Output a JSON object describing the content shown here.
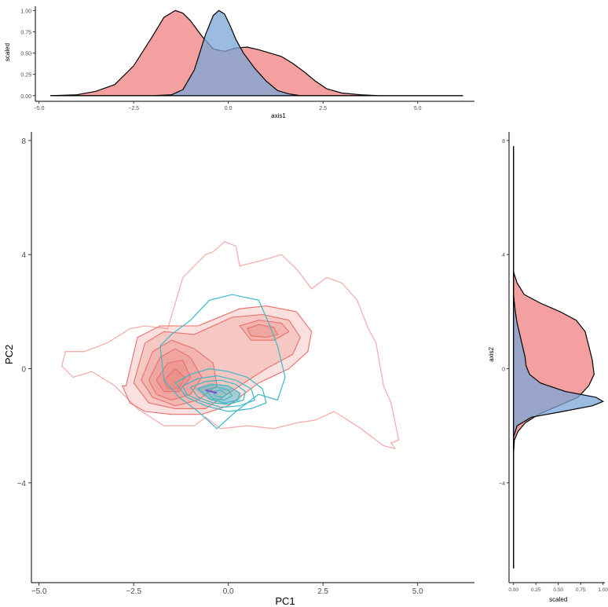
{
  "chart_data": [
    {
      "panel": "top-marginal",
      "type": "area",
      "xlabel": "axis1",
      "ylabel": "scaled",
      "xlim": [
        -5.2,
        6.5
      ],
      "ylim": [
        -0.03,
        1.05
      ],
      "xticks": [
        -5,
        -2.5,
        0,
        2.5,
        5
      ],
      "xtick_labels": [
        "−5.0",
        "−2.5",
        "0.0",
        "2.5",
        "5.0"
      ],
      "yticks": [
        0,
        0.25,
        0.5,
        0.75,
        1
      ],
      "ytick_labels": [
        "0.00",
        "0.25",
        "0.50",
        "0.75",
        "1.00"
      ],
      "series": [
        {
          "color": "#f08080",
          "x": [
            -4.7,
            -4.0,
            -3.5,
            -3.0,
            -2.5,
            -2.0,
            -1.7,
            -1.4,
            -1.2,
            -1.0,
            -0.7,
            -0.4,
            -0.1,
            0.2,
            0.5,
            0.8,
            1.1,
            1.4,
            1.7,
            2.0,
            2.3,
            2.6,
            3.0,
            3.5,
            4.0,
            5.0,
            6.2
          ],
          "values": [
            0,
            0.01,
            0.05,
            0.13,
            0.35,
            0.7,
            0.92,
            1.0,
            0.97,
            0.88,
            0.7,
            0.55,
            0.52,
            0.56,
            0.57,
            0.54,
            0.5,
            0.46,
            0.38,
            0.28,
            0.17,
            0.08,
            0.03,
            0.01,
            0.0,
            0,
            0
          ]
        },
        {
          "color": "#7aa6d6",
          "x": [
            -4.7,
            -2.0,
            -1.5,
            -1.2,
            -0.9,
            -0.6,
            -0.4,
            -0.25,
            -0.1,
            0.05,
            0.2,
            0.4,
            0.7,
            1.0,
            1.3,
            1.6,
            1.9,
            2.3,
            6.2
          ],
          "values": [
            0,
            0,
            0.01,
            0.07,
            0.3,
            0.72,
            0.94,
            1.0,
            0.96,
            0.82,
            0.66,
            0.5,
            0.32,
            0.17,
            0.06,
            0.02,
            0.0,
            0,
            0
          ]
        }
      ]
    },
    {
      "panel": "main",
      "type": "contour",
      "xlabel": "PC1",
      "ylabel": "PC2",
      "xlim": [
        -5.2,
        6.5
      ],
      "ylim": [
        -7.5,
        8.3
      ],
      "xticks": [
        -5,
        -2.5,
        0,
        2.5,
        5
      ],
      "xtick_labels": [
        "−5.0",
        "−2.5",
        "0.0",
        "2.5",
        "5.0"
      ],
      "yticks": [
        -4,
        0,
        4,
        8
      ],
      "ytick_labels": [
        "−4",
        "0",
        "4",
        "8"
      ],
      "groups": [
        {
          "color": "#e8706a",
          "filled_levels": [
            {
              "opacity": 0.22,
              "x": [
                -2.7,
                -2.4,
                -1.8,
                -0.8,
                0.3,
                1.0,
                1.8,
                2.2,
                2.1,
                1.6,
                0.8,
                0.0,
                -0.7,
                -1.5,
                -2.2,
                -2.6,
                -2.8
              ],
              "y": [
                -0.6,
                1.1,
                1.5,
                1.5,
                2.1,
                2.2,
                2.0,
                1.3,
                0.6,
                0.0,
                -0.5,
                -1.3,
                -1.6,
                -1.6,
                -1.5,
                -1.2,
                -0.6
              ]
            },
            {
              "opacity": 0.22,
              "x": [
                -2.5,
                -2.2,
                -1.7,
                -0.9,
                0.1,
                0.9,
                1.6,
                1.9,
                1.7,
                1.0,
                0.3,
                -0.6,
                -1.4,
                -2.1,
                -2.5
              ],
              "y": [
                -0.5,
                0.9,
                1.3,
                1.2,
                1.8,
                1.9,
                1.7,
                1.1,
                0.5,
                0.0,
                -0.6,
                -1.4,
                -1.4,
                -1.2,
                -0.5
              ]
            },
            {
              "opacity": 0.22,
              "x": [
                -2.3,
                -2.0,
                -1.5,
                -0.9,
                -0.4,
                -0.3,
                -0.8,
                -1.4,
                -2.0,
                -2.3
              ],
              "y": [
                -0.4,
                0.6,
                1.0,
                0.7,
                0.2,
                -0.6,
                -1.1,
                -1.3,
                -1.0,
                -0.4
              ]
            },
            {
              "opacity": 0.22,
              "x": [
                0.3,
                0.8,
                1.4,
                1.6,
                1.2,
                0.6,
                0.3
              ],
              "y": [
                1.5,
                1.7,
                1.6,
                1.3,
                1.0,
                1.0,
                1.5
              ]
            },
            {
              "opacity": 0.22,
              "x": [
                -2.1,
                -1.8,
                -1.4,
                -1.0,
                -0.7,
                -1.0,
                -1.5,
                -1.9,
                -2.1
              ],
              "y": [
                -0.4,
                0.4,
                0.7,
                0.4,
                -0.3,
                -0.9,
                -1.1,
                -0.9,
                -0.4
              ]
            },
            {
              "opacity": 0.22,
              "x": [
                0.5,
                0.8,
                1.2,
                1.3,
                1.0,
                0.6,
                0.5
              ],
              "y": [
                1.4,
                1.55,
                1.45,
                1.2,
                1.1,
                1.15,
                1.4
              ]
            },
            {
              "opacity": 0.22,
              "x": [
                -1.9,
                -1.6,
                -1.2,
                -1.0,
                -1.3,
                -1.7,
                -1.9
              ],
              "y": [
                -0.4,
                0.2,
                0.3,
                -0.3,
                -0.8,
                -0.8,
                -0.4
              ]
            },
            {
              "opacity": 0.22,
              "x": [
                -1.7,
                -1.4,
                -1.15,
                -1.3,
                -1.6,
                -1.7
              ],
              "y": [
                -0.4,
                0.0,
                -0.3,
                -0.7,
                -0.7,
                -0.4
              ]
            }
          ],
          "outer_outline": {
            "x": [
              -4.3,
              -3.8,
              -3.2,
              -2.6,
              -2.2,
              -1.6,
              -1.2,
              -0.6,
              -0.4,
              -0.1,
              0.2,
              0.3,
              0.9,
              1.4,
              1.8,
              2.2,
              2.6,
              3.0,
              3.4,
              3.7,
              3.9,
              4.1,
              4.3,
              4.5,
              4.3,
              4.4,
              4.1,
              3.5,
              2.8,
              2.3,
              1.8,
              1.2,
              0.5,
              -0.2,
              -0.6,
              -0.9,
              -1.7,
              -2.4,
              -3.0,
              -3.6,
              -4.1,
              -4.4,
              -4.3
            ],
            "y": [
              0.6,
              0.6,
              0.9,
              1.4,
              1.5,
              1.4,
              3.2,
              4.0,
              4.1,
              4.45,
              4.3,
              3.6,
              3.8,
              4.0,
              3.5,
              2.8,
              3.2,
              3.0,
              2.4,
              1.4,
              0.9,
              -0.6,
              -1.2,
              -2.5,
              -2.6,
              -2.8,
              -2.7,
              -2.1,
              -1.5,
              -1.8,
              -1.9,
              -2.1,
              -2.0,
              -2.1,
              -1.7,
              -2.0,
              -2.0,
              -1.4,
              -0.6,
              -0.1,
              -0.3,
              0.1,
              0.6
            ]
          }
        },
        {
          "color": "#3cb8c8",
          "lines": [
            {
              "x": [
                -1.8,
                -1.5,
                -1.0,
                -0.5,
                0.1,
                0.8,
                1.1,
                1.3,
                1.5,
                1.3,
                0.8,
                0.2,
                -0.3,
                -0.8,
                -1.3,
                -1.7,
                -1.8
              ],
              "y": [
                0.8,
                1.2,
                1.7,
                2.4,
                2.6,
                2.4,
                1.5,
                0.8,
                -0.3,
                -1.1,
                -0.9,
                -1.5,
                -2.1,
                -1.5,
                -1.0,
                -0.4,
                0.8
              ]
            },
            {
              "x": [
                -1.4,
                -1.0,
                -0.5,
                0.0,
                0.5,
                0.9,
                1.0,
                0.6,
                0.0,
                -0.6,
                -1.1,
                -1.4
              ],
              "y": [
                -0.5,
                -0.2,
                0.0,
                -0.1,
                -0.3,
                -0.7,
                -1.2,
                -1.4,
                -1.5,
                -1.3,
                -1.0,
                -0.5
              ]
            },
            {
              "x": [
                -1.2,
                -0.8,
                -0.3,
                0.2,
                0.6,
                0.7,
                0.3,
                -0.2,
                -0.7,
                -1.1,
                -1.2
              ],
              "y": [
                -0.6,
                -0.35,
                -0.25,
                -0.4,
                -0.7,
                -1.1,
                -1.3,
                -1.35,
                -1.15,
                -0.9,
                -0.6
              ]
            },
            {
              "x": [
                -1.0,
                -0.6,
                -0.2,
                0.2,
                0.45,
                0.4,
                0.0,
                -0.4,
                -0.8,
                -1.0
              ],
              "y": [
                -0.65,
                -0.45,
                -0.4,
                -0.55,
                -0.8,
                -1.1,
                -1.25,
                -1.2,
                -1.0,
                -0.65
              ]
            },
            {
              "x": [
                -0.8,
                -0.4,
                0.0,
                0.3,
                0.25,
                -0.1,
                -0.5,
                -0.8
              ],
              "y": [
                -0.7,
                -0.55,
                -0.6,
                -0.85,
                -1.1,
                -1.2,
                -1.05,
                -0.7
              ]
            },
            {
              "x": [
                -0.6,
                -0.3,
                0.0,
                0.1,
                -0.1,
                -0.4,
                -0.6
              ],
              "y": [
                -0.75,
                -0.65,
                -0.75,
                -0.95,
                -1.1,
                -1.05,
                -0.75
              ]
            },
            {
              "x": [
                -0.4,
                -0.2,
                -0.05,
                -0.15,
                -0.35,
                -0.4
              ],
              "y": [
                -0.8,
                -0.75,
                -0.9,
                -1.0,
                -0.95,
                -0.8
              ]
            }
          ],
          "filled_core": {
            "color": "#3cb8c8",
            "opacity": 0.45,
            "x": [
              -0.9,
              -0.5,
              0.0,
              0.35,
              0.3,
              -0.1,
              -0.5,
              -0.9
            ],
            "y": [
              -0.7,
              -0.5,
              -0.6,
              -0.9,
              -1.15,
              -1.25,
              -1.1,
              -0.7
            ]
          },
          "center_mark": {
            "color": "#7b52c8",
            "x": [
              -0.6,
              -0.3
            ],
            "y": [
              -0.75,
              -0.85
            ]
          }
        }
      ]
    },
    {
      "panel": "right-marginal",
      "type": "area",
      "xlabel": "scaled",
      "ylabel": "axis2",
      "xlim": [
        -0.05,
        1.02
      ],
      "ylim": [
        -7.5,
        8.3
      ],
      "xticks": [
        0,
        0.25,
        0.5,
        0.75,
        1
      ],
      "xtick_labels": [
        "0.00",
        "0.25",
        "0.50",
        "0.75",
        "1.00"
      ],
      "yticks": [
        -4,
        0,
        4,
        8
      ],
      "ytick_labels": [
        "−4",
        "0",
        "4",
        "8"
      ],
      "series": [
        {
          "color": "#f08080",
          "y": [
            -7.0,
            -3.0,
            -2.5,
            -2.2,
            -1.9,
            -1.6,
            -1.3,
            -1.0,
            -0.6,
            -0.2,
            0.3,
            0.8,
            1.3,
            1.7,
            2.0,
            2.3,
            2.6,
            3.0,
            3.4,
            7.8
          ],
          "values": [
            0,
            0,
            0.01,
            0.05,
            0.13,
            0.28,
            0.5,
            0.72,
            0.84,
            0.9,
            0.88,
            0.84,
            0.8,
            0.7,
            0.52,
            0.3,
            0.12,
            0.04,
            0.0,
            0
          ]
        },
        {
          "color": "#7aa6d6",
          "y": [
            -7.0,
            -2.4,
            -2.0,
            -1.7,
            -1.5,
            -1.3,
            -1.15,
            -1.0,
            -0.8,
            -0.5,
            -0.2,
            0.1,
            0.4,
            0.8,
            1.2,
            1.6,
            2.0,
            2.6,
            7.8
          ],
          "values": [
            0,
            0,
            0.04,
            0.2,
            0.55,
            0.88,
            1.0,
            0.92,
            0.58,
            0.3,
            0.18,
            0.14,
            0.13,
            0.1,
            0.07,
            0.04,
            0.02,
            0.0,
            0
          ]
        }
      ]
    }
  ]
}
